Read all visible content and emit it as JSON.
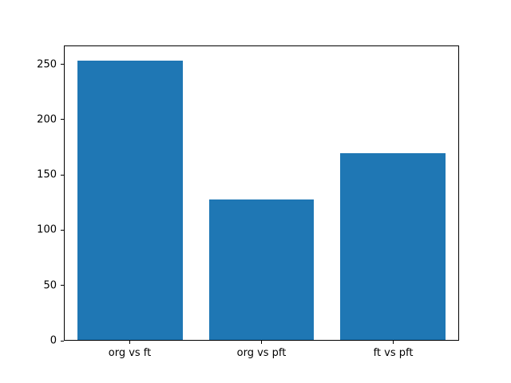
{
  "chart_data": {
    "type": "bar",
    "categories": [
      "org vs ft",
      "org vs pft",
      "ft vs pft"
    ],
    "values": [
      254,
      128,
      170
    ],
    "title": "",
    "xlabel": "",
    "ylabel": "",
    "ylim": [
      0,
      267
    ],
    "yticks": [
      0,
      50,
      100,
      150,
      200,
      250
    ],
    "bar_width_fraction": 0.8,
    "grid": false,
    "legend": null,
    "colors": {
      "bar": "#1f77b4",
      "axis": "#000000",
      "background": "#ffffff"
    }
  }
}
